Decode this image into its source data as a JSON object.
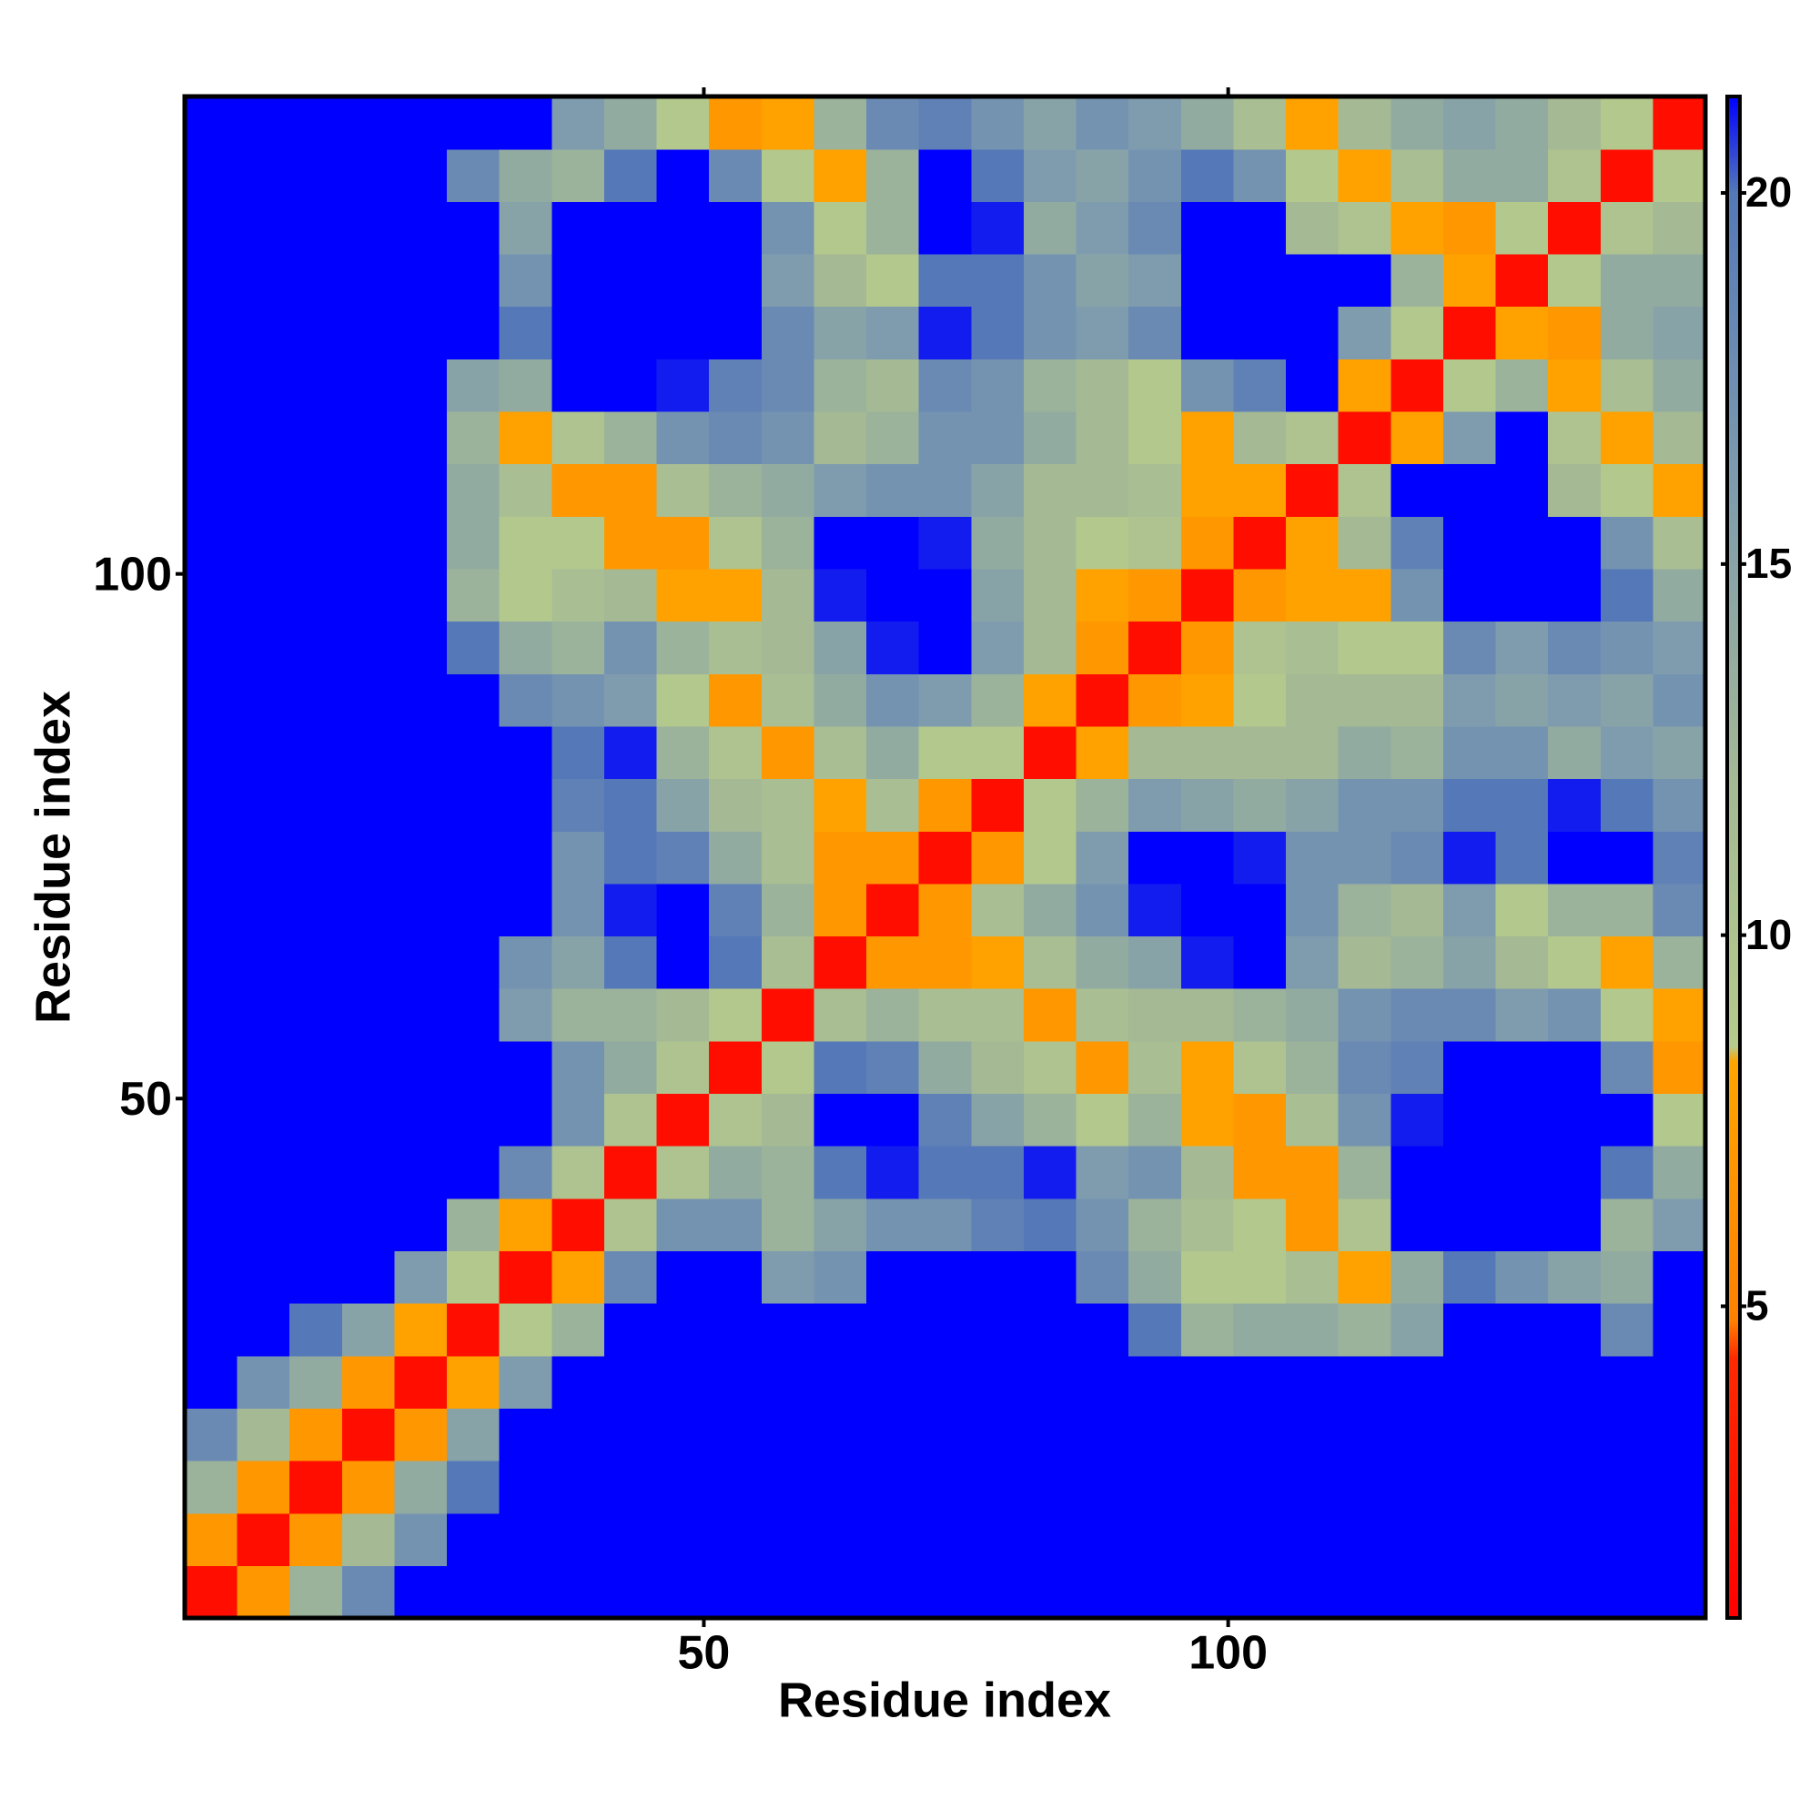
{
  "chart_data": {
    "type": "heatmap",
    "xlabel": "Residue index",
    "ylabel": "Residue index",
    "x": [
      3,
      8,
      13,
      18,
      23,
      28,
      33,
      38,
      43,
      48,
      53,
      58,
      63,
      68,
      73,
      78,
      83,
      88,
      93,
      98,
      103,
      108,
      113,
      118,
      123,
      128,
      133,
      138,
      143
    ],
    "y": [
      3,
      8,
      13,
      18,
      23,
      28,
      33,
      38,
      43,
      48,
      53,
      58,
      63,
      68,
      73,
      78,
      83,
      88,
      93,
      98,
      103,
      108,
      113,
      118,
      123,
      128,
      133,
      138,
      143
    ],
    "cell_size": 5,
    "z": [
      [
        2,
        7,
        13,
        18,
        25,
        25,
        25,
        25,
        25,
        25,
        25,
        25,
        25,
        25,
        25,
        25,
        25,
        25,
        25,
        25,
        25,
        25,
        25,
        25,
        25,
        25,
        25,
        25,
        25
      ],
      [
        7,
        2,
        7,
        12,
        17,
        25,
        25,
        25,
        25,
        25,
        25,
        25,
        25,
        25,
        25,
        25,
        25,
        25,
        25,
        25,
        25,
        25,
        25,
        25,
        25,
        25,
        25,
        25,
        25
      ],
      [
        13,
        7,
        2,
        7,
        14,
        20,
        25,
        25,
        25,
        25,
        25,
        25,
        25,
        25,
        25,
        25,
        25,
        25,
        25,
        25,
        25,
        25,
        25,
        25,
        25,
        25,
        25,
        25,
        25
      ],
      [
        18,
        12,
        7,
        2,
        7,
        15,
        25,
        25,
        25,
        25,
        25,
        25,
        25,
        25,
        25,
        25,
        25,
        25,
        25,
        25,
        25,
        25,
        25,
        25,
        25,
        25,
        25,
        25,
        25
      ],
      [
        25,
        17,
        14,
        7,
        2,
        8,
        16,
        22,
        25,
        25,
        25,
        25,
        25,
        25,
        25,
        25,
        25,
        25,
        25,
        25,
        25,
        25,
        25,
        25,
        25,
        25,
        25,
        25,
        25
      ],
      [
        25,
        25,
        20,
        15,
        8,
        2,
        9,
        13,
        25,
        25,
        25,
        25,
        25,
        25,
        25,
        25,
        25,
        25,
        20,
        13,
        14,
        14,
        13,
        15,
        25,
        25,
        25,
        18,
        25
      ],
      [
        25,
        25,
        25,
        25,
        16,
        9,
        2,
        8,
        18,
        25,
        25,
        16,
        17,
        25,
        25,
        25,
        25,
        18,
        14,
        9,
        9,
        11,
        8,
        14,
        20,
        17,
        15,
        14,
        25
      ],
      [
        25,
        25,
        25,
        25,
        22,
        13,
        8,
        2,
        10,
        17,
        17,
        13,
        15,
        17,
        17,
        19,
        20,
        17,
        13,
        11,
        9,
        7,
        10,
        22,
        25,
        25,
        25,
        13,
        16
      ],
      [
        25,
        25,
        25,
        25,
        25,
        25,
        18,
        10,
        2,
        10,
        14,
        13,
        20,
        21,
        20,
        20,
        21,
        16,
        17,
        12,
        7,
        7,
        13,
        25,
        25,
        25,
        25,
        20,
        14
      ],
      [
        25,
        25,
        25,
        25,
        25,
        25,
        25,
        17,
        10,
        2,
        10,
        12,
        23,
        23,
        19,
        15,
        13,
        9,
        13,
        8,
        7,
        11,
        17,
        21,
        24,
        25,
        25,
        22,
        9
      ],
      [
        25,
        25,
        25,
        25,
        25,
        25,
        25,
        17,
        14,
        10,
        2,
        9,
        20,
        19,
        14,
        12,
        10,
        7,
        11,
        8,
        10,
        13,
        18,
        19,
        22,
        24,
        22,
        18,
        7
      ],
      [
        25,
        25,
        25,
        25,
        25,
        25,
        16,
        13,
        13,
        12,
        9,
        2,
        11,
        13,
        11,
        11,
        7,
        11,
        12,
        12,
        13,
        14,
        17,
        18,
        18,
        16,
        17,
        9,
        8
      ],
      [
        25,
        25,
        25,
        25,
        25,
        25,
        17,
        15,
        20,
        23,
        20,
        11,
        2,
        7,
        7,
        8,
        11,
        14,
        15,
        21,
        22,
        16,
        12,
        13,
        15,
        12,
        9,
        8,
        13
      ],
      [
        25,
        25,
        25,
        25,
        25,
        25,
        25,
        17,
        21,
        23,
        19,
        13,
        7,
        2,
        7,
        11,
        14,
        17,
        21,
        25,
        24,
        17,
        13,
        12,
        16,
        9,
        13,
        13,
        18
      ],
      [
        25,
        25,
        25,
        25,
        25,
        25,
        25,
        17,
        20,
        19,
        14,
        11,
        7,
        7,
        2,
        7,
        9,
        16,
        22,
        22,
        21,
        17,
        17,
        18,
        21,
        20,
        22,
        22,
        19
      ],
      [
        25,
        25,
        25,
        25,
        25,
        25,
        25,
        19,
        20,
        15,
        12,
        11,
        8,
        11,
        7,
        2,
        9,
        13,
        16,
        15,
        14,
        15,
        17,
        17,
        20,
        20,
        21,
        20,
        17
      ],
      [
        25,
        25,
        25,
        25,
        25,
        25,
        25,
        20,
        21,
        13,
        10,
        7,
        11,
        14,
        9,
        9,
        2,
        8,
        12,
        12,
        12,
        12,
        14,
        13,
        17,
        17,
        14,
        16,
        15
      ],
      [
        25,
        25,
        25,
        25,
        25,
        25,
        18,
        17,
        16,
        9,
        7,
        11,
        14,
        17,
        16,
        13,
        8,
        2,
        7,
        8,
        9,
        12,
        12,
        12,
        16,
        15,
        16,
        15,
        17
      ],
      [
        25,
        25,
        25,
        25,
        25,
        20,
        14,
        13,
        17,
        13,
        11,
        12,
        15,
        21,
        22,
        16,
        12,
        7,
        2,
        7,
        10,
        11,
        9,
        9,
        18,
        16,
        18,
        17,
        16
      ],
      [
        25,
        25,
        25,
        25,
        25,
        13,
        9,
        11,
        12,
        8,
        8,
        12,
        21,
        25,
        22,
        15,
        12,
        8,
        7,
        2,
        7,
        8,
        8,
        17,
        23,
        23,
        23,
        20,
        14
      ],
      [
        25,
        25,
        25,
        25,
        25,
        14,
        9,
        9,
        7,
        7,
        10,
        13,
        22,
        24,
        21,
        14,
        12,
        9,
        10,
        7,
        2,
        8,
        12,
        19,
        25,
        25,
        22,
        17,
        11
      ],
      [
        25,
        25,
        25,
        25,
        25,
        14,
        11,
        7,
        7,
        11,
        13,
        14,
        16,
        17,
        17,
        15,
        12,
        12,
        11,
        8,
        8,
        2,
        10,
        22,
        24,
        25,
        12,
        9,
        8
      ],
      [
        25,
        25,
        25,
        25,
        25,
        13,
        8,
        10,
        13,
        17,
        18,
        17,
        12,
        13,
        17,
        17,
        14,
        12,
        9,
        8,
        12,
        10,
        2,
        8,
        16,
        22,
        10,
        8,
        12
      ],
      [
        25,
        25,
        25,
        25,
        25,
        15,
        14,
        22,
        25,
        21,
        19,
        18,
        13,
        12,
        18,
        17,
        13,
        12,
        9,
        17,
        19,
        22,
        8,
        2,
        9,
        13,
        8,
        11,
        14
      ],
      [
        25,
        25,
        25,
        25,
        25,
        25,
        20,
        25,
        25,
        24,
        22,
        18,
        15,
        16,
        21,
        20,
        17,
        16,
        18,
        23,
        25,
        24,
        16,
        9,
        2,
        8,
        7,
        14,
        15
      ],
      [
        25,
        25,
        25,
        25,
        25,
        25,
        17,
        25,
        25,
        25,
        24,
        16,
        12,
        9,
        20,
        20,
        17,
        15,
        16,
        23,
        25,
        25,
        22,
        13,
        8,
        2,
        9,
        14,
        14
      ],
      [
        25,
        25,
        25,
        25,
        25,
        25,
        15,
        25,
        25,
        25,
        22,
        17,
        9,
        13,
        22,
        21,
        14,
        16,
        18,
        23,
        22,
        12,
        10,
        8,
        7,
        9,
        2,
        10,
        12
      ],
      [
        25,
        25,
        25,
        25,
        25,
        18,
        14,
        13,
        20,
        22,
        18,
        9,
        8,
        13,
        22,
        20,
        16,
        15,
        17,
        20,
        17,
        9,
        8,
        11,
        14,
        14,
        10,
        2,
        9
      ],
      [
        25,
        25,
        25,
        25,
        25,
        25,
        25,
        16,
        14,
        9,
        7,
        8,
        13,
        18,
        19,
        17,
        15,
        17,
        16,
        14,
        11,
        8,
        12,
        14,
        15,
        14,
        12,
        9,
        2
      ]
    ],
    "xlim": [
      0.5,
      145.5
    ],
    "ylim": [
      0.5,
      145.5
    ],
    "xticks": [
      50,
      100
    ],
    "yticks": [
      50,
      100
    ],
    "zlim": [
      0.8,
      21.3
    ],
    "zticks": [
      5,
      10,
      15,
      20
    ],
    "colorscale": [
      {
        "value": 0.8,
        "color": "#ff0000"
      },
      {
        "value": 4.3,
        "color": "#ff2a00"
      },
      {
        "value": 4.8,
        "color": "#ff8000"
      },
      {
        "value": 8.3,
        "color": "#ffa500"
      },
      {
        "value": 8.5,
        "color": "#b6ca8c"
      },
      {
        "value": 12,
        "color": "#a4b994"
      },
      {
        "value": 16,
        "color": "#7f9cae"
      },
      {
        "value": 20,
        "color": "#5478b8"
      },
      {
        "value": 21.3,
        "color": "#0000ff"
      }
    ]
  }
}
